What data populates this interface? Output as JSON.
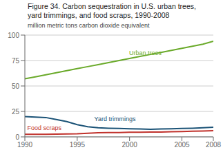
{
  "chart_data": {
    "type": "line",
    "title": [
      "Figure 34. Carbon sequestration in U.S. urban trees,",
      "yard trimmings, and food scraps, 1990-2008"
    ],
    "y_label": "million metric tons carbon dioxide equivalent",
    "x": [
      1990,
      1991,
      1992,
      1993,
      1994,
      1995,
      1996,
      1997,
      1998,
      1999,
      2000,
      2001,
      2002,
      2003,
      2004,
      2005,
      2006,
      2007,
      2008
    ],
    "series": [
      {
        "name": "Urban trees",
        "color": "#6aaa2a",
        "values": [
          57,
          59,
          61,
          63,
          65,
          67,
          69,
          71,
          73,
          75,
          77,
          79,
          81,
          83,
          85,
          87,
          89,
          91,
          94
        ]
      },
      {
        "name": "Yard trimmings",
        "color": "#1a5276",
        "values": [
          20,
          19.5,
          19,
          17,
          15,
          12,
          10,
          9,
          8.5,
          8.2,
          8,
          7.8,
          7.5,
          7.8,
          8,
          8.2,
          8.5,
          9,
          9.5
        ]
      },
      {
        "name": "Food scraps",
        "color": "#c0312b",
        "values": [
          2.5,
          2.5,
          2.6,
          2.7,
          2.8,
          3.0,
          3.5,
          4.0,
          4.2,
          4.3,
          4.5,
          4.6,
          4.7,
          4.8,
          5.0,
          5.2,
          5.5,
          5.7,
          6.0
        ]
      }
    ],
    "annotations": [
      {
        "text": "Urban trees",
        "x": 2001.5,
        "y": 79,
        "color": "#6aaa2a"
      },
      {
        "text": "Yard trimmings",
        "x": 1996.5,
        "y": 14,
        "color": "#1a5276"
      },
      {
        "text": "Food scraps",
        "x": 1990.1,
        "y": 5.5,
        "color": "#c0312b"
      }
    ],
    "xlim": [
      1990,
      2008
    ],
    "xticks": [
      1990,
      1995,
      2000,
      2005,
      2008
    ],
    "ylim": [
      0,
      100
    ],
    "yticks": [
      0,
      25,
      50,
      75,
      100
    ],
    "grid": true
  }
}
